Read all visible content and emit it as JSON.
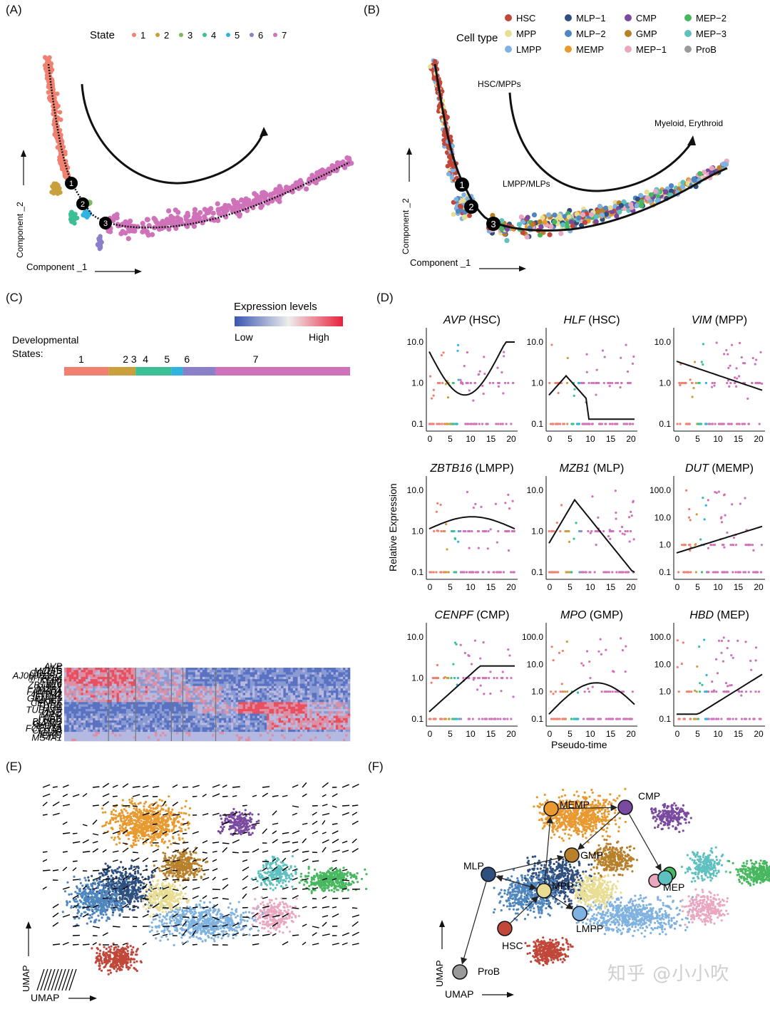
{
  "panels": {
    "A": {
      "label": "(A)",
      "legend_title": "State",
      "states": [
        "1",
        "2",
        "3",
        "4",
        "5",
        "6",
        "7"
      ],
      "xlabel": "Component _1",
      "ylabel": "Component _2",
      "branch_points": [
        "1",
        "2",
        "3"
      ]
    },
    "B": {
      "label": "(B)",
      "legend_title": "Cell type",
      "cell_types": [
        "HSC",
        "MPP",
        "LMPP",
        "MLP−1",
        "MLP−2",
        "MEMP",
        "CMP",
        "GMP",
        "MEP−1",
        "MEP−2",
        "MEP−3",
        "ProB"
      ],
      "annotations": [
        "HSC/MPPs",
        "Myeloid, Erythroid",
        "LMPP/MLPs"
      ],
      "xlabel": "Component _1",
      "ylabel": "Component _2",
      "branch_points": [
        "1",
        "2",
        "3"
      ]
    },
    "C": {
      "label": "(C)",
      "legend_title": "Expression levels",
      "low": "Low",
      "high": "High",
      "states_label_1": "Developmental",
      "states_label_2": "States:",
      "state_labels": [
        "1",
        "2 3",
        "4",
        "5",
        "6",
        "7"
      ],
      "genes": [
        "AVP",
        "HLF",
        "MLLT3",
        "CRHBP",
        "AJ009632.2",
        "MYADM",
        "KLF6",
        "VIM",
        "ZBTB16",
        "RHEX",
        "MZB1",
        "FAM30A",
        "IFITM2",
        "IFITM1",
        "GIMAP5",
        "MKI67",
        "CENPF",
        "TUBB",
        "DUT",
        "TUBA1B",
        "LYZ",
        "MPO",
        "PLEK",
        "HBD",
        "BLVRB",
        "GATA2",
        "PCNA",
        "FCER1A",
        "CD79A",
        "IGHM",
        "IGKC",
        "MS4A1"
      ]
    },
    "D": {
      "label": "(D)",
      "ylabel": "Relative Expression",
      "xlabel": "Pseudo-time",
      "x_ticks": [
        "0",
        "5",
        "10",
        "15",
        "20"
      ],
      "subplots": [
        {
          "gene": "AVP",
          "type": "(HSC)",
          "yticks": [
            "10.0",
            "1.0",
            "0.1"
          ]
        },
        {
          "gene": "HLF",
          "type": "(HSC)",
          "yticks": [
            "10.0",
            "1.0",
            "0.1"
          ]
        },
        {
          "gene": "VIM",
          "type": "(MPP)",
          "yticks": [
            "10.0",
            "1.0",
            "0.1"
          ]
        },
        {
          "gene": "ZBTB16",
          "type": "(LMPP)",
          "yticks": [
            "10.0",
            "1.0",
            "0.1"
          ]
        },
        {
          "gene": "MZB1",
          "type": "(MLP)",
          "yticks": [
            "10.0",
            "1.0",
            "0.1"
          ]
        },
        {
          "gene": "DUT",
          "type": "(MEMP)",
          "yticks": [
            "100.0",
            "10.0",
            "1.0",
            "0.1"
          ]
        },
        {
          "gene": "CENPF",
          "type": "(CMP)",
          "yticks": [
            "10.0",
            "1.0",
            "0.1"
          ]
        },
        {
          "gene": "MPO",
          "type": "(GMP)",
          "yticks": [
            "100.0",
            "10.0",
            "1.0",
            "0.1"
          ]
        },
        {
          "gene": "HBD",
          "type": "(MEP)",
          "yticks": [
            "100.0",
            "10.0",
            "1.0",
            "0.1"
          ]
        }
      ]
    },
    "E": {
      "label": "(E)",
      "xlabel": "UMAP",
      "ylabel": "UMAP"
    },
    "F": {
      "label": "(F)",
      "xlabel": "UMAP",
      "ylabel": "UMAP",
      "nodes": [
        "CMP",
        "MEMP",
        "GMP",
        "MLP",
        "MPP",
        "LMPP",
        "HSC",
        "MEP",
        "ProB"
      ]
    }
  },
  "colors": {
    "state": [
      "#f08070",
      "#c9a03c",
      "#7fb85a",
      "#3cbf95",
      "#30b3e0",
      "#8a80c8",
      "#cf72b9"
    ],
    "cell": {
      "HSC": "#c0473a",
      "MPP": "#e9dd93",
      "LMPP": "#7fb2e0",
      "MLP-1": "#2f4f7f",
      "MLP-2": "#4f86bf",
      "MEMP": "#e89a30",
      "CMP": "#7a4aa0",
      "GMP": "#b8802a",
      "MEP-1": "#e9a8c0",
      "MEP-2": "#48b860",
      "MEP-3": "#5fc0c0",
      "ProB": "#9a9a9a"
    }
  },
  "watermark": "知乎 @小小吹"
}
